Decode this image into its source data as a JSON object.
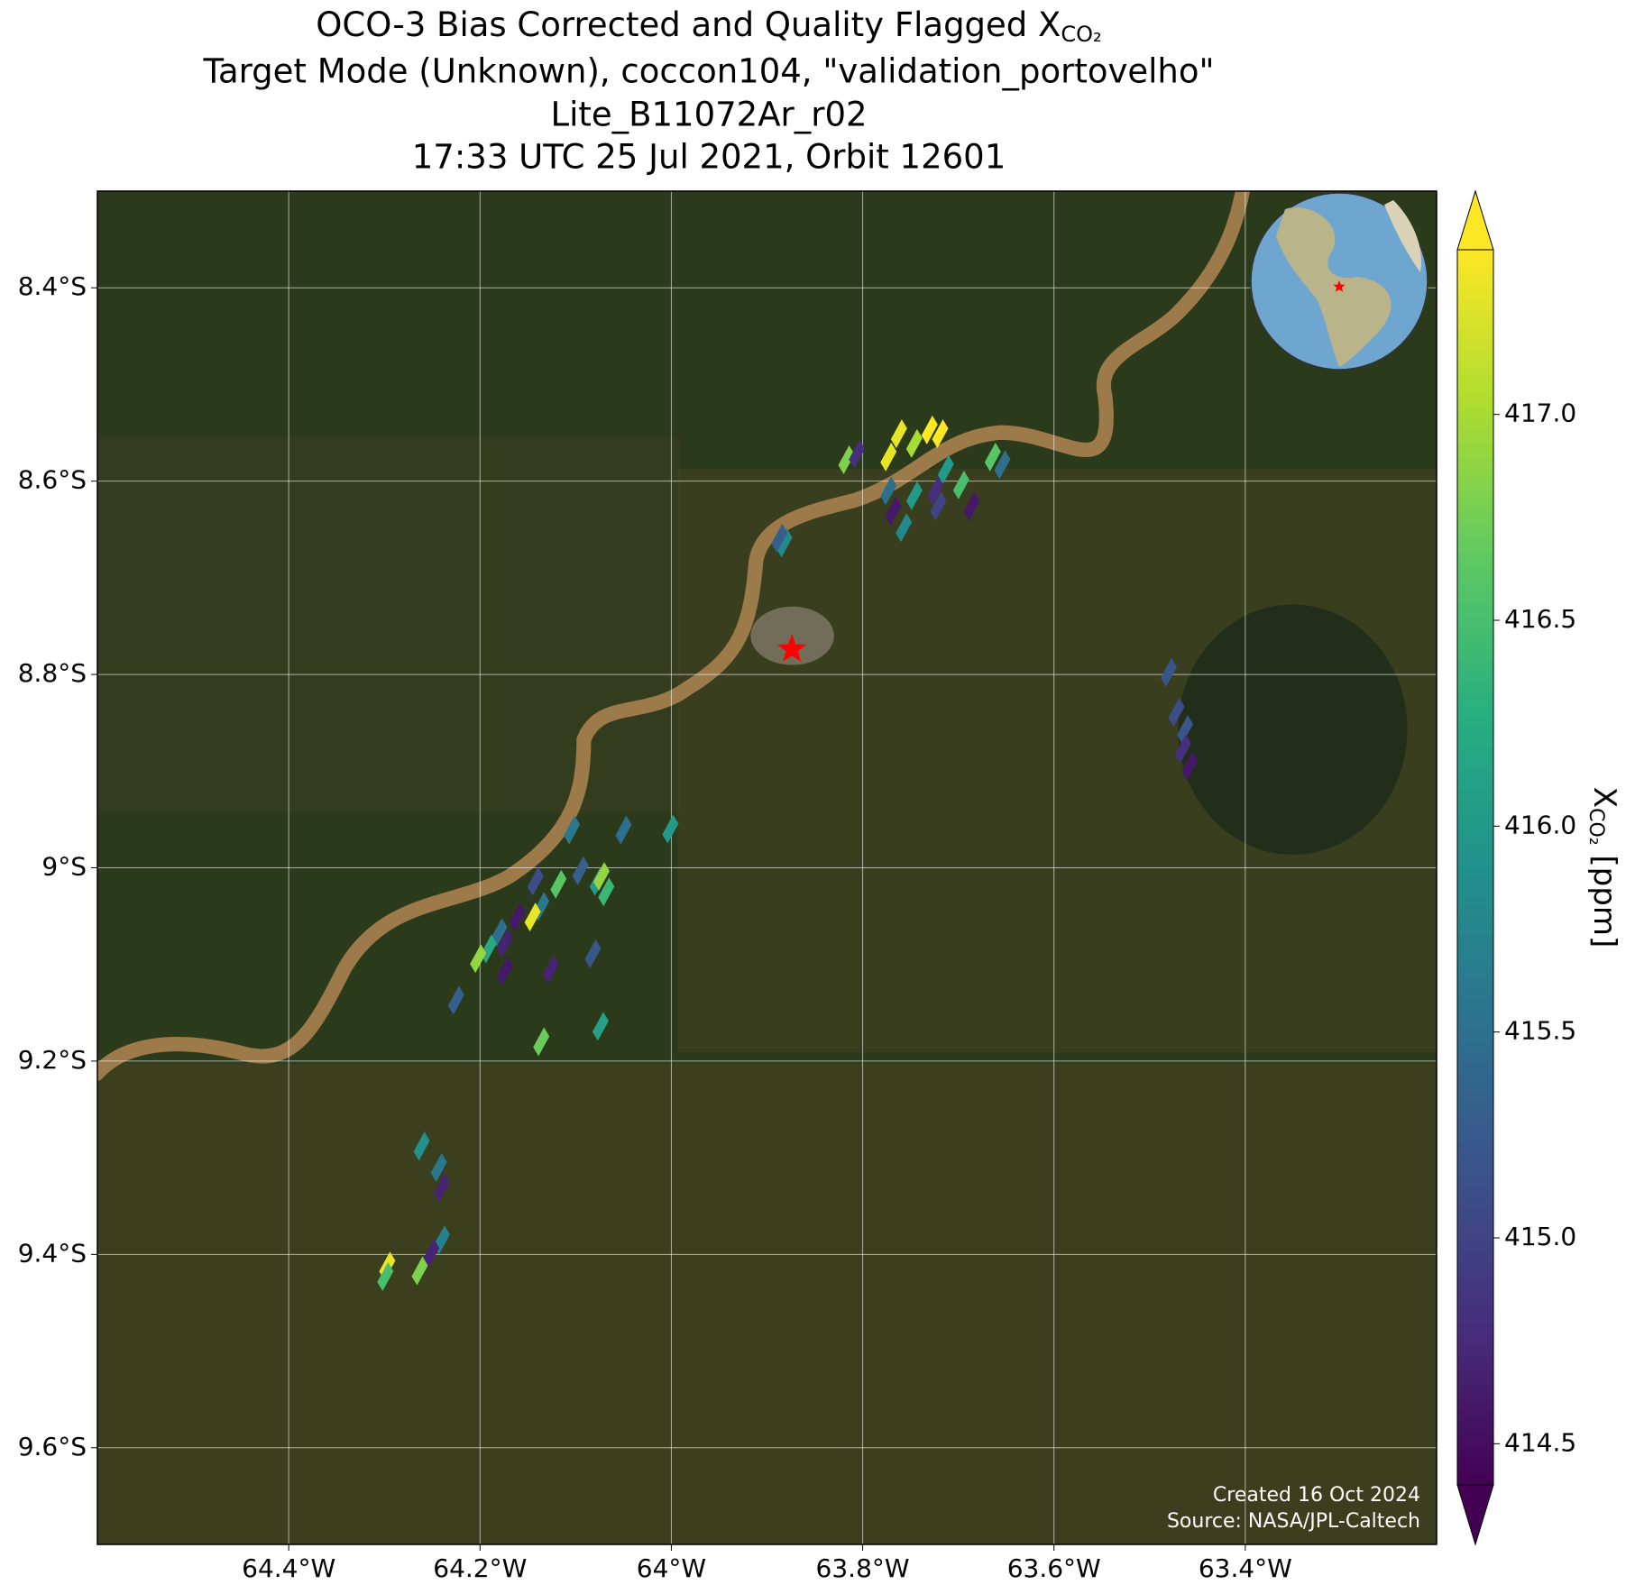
{
  "chart_data": {
    "type": "footprint-map",
    "title": {
      "line1": "OCO-3 Bias Corrected and Quality Flagged X",
      "line1_sub": "CO₂",
      "line2": "Target Mode (Unknown), coccon104, \"validation_portovelho\"",
      "line3": "Lite_B11072Ar_r02",
      "line4": "17:33 UTC 25 Jul 2021, Orbit 12601"
    },
    "xlim": [
      -64.6,
      -63.2
    ],
    "ylim": [
      -9.7,
      -8.3
    ],
    "xticks": [
      {
        "value": -64.4,
        "label": "64.4°W"
      },
      {
        "value": -64.2,
        "label": "64.2°W"
      },
      {
        "value": -64.0,
        "label": "64°W"
      },
      {
        "value": -63.8,
        "label": "63.8°W"
      },
      {
        "value": -63.6,
        "label": "63.6°W"
      },
      {
        "value": -63.4,
        "label": "63.4°W"
      }
    ],
    "yticks": [
      {
        "value": -8.4,
        "label": "8.4°S"
      },
      {
        "value": -8.6,
        "label": "8.6°S"
      },
      {
        "value": -8.8,
        "label": "8.8°S"
      },
      {
        "value": -9.0,
        "label": "9°S"
      },
      {
        "value": -9.2,
        "label": "9.2°S"
      },
      {
        "value": -9.4,
        "label": "9.4°S"
      },
      {
        "value": -9.6,
        "label": "9.6°S"
      }
    ],
    "grid": true,
    "colormap": "viridis",
    "clim": [
      414.4,
      417.4
    ],
    "cticks": [
      414.5,
      {
        "value": 415.0,
        "label": "415.0"
      },
      415.5,
      {
        "value": 416.0,
        "label": "416.0"
      },
      416.5,
      {
        "value": 417.0,
        "label": "417.0"
      }
    ],
    "colorbar_label": {
      "main": "X",
      "sub": "CO₂",
      "unit": "[ppm]"
    },
    "target": {
      "x": -63.874,
      "y": -8.774,
      "color": "#ff0000"
    },
    "x": [
      -63.817,
      -63.806,
      -63.773,
      -63.762,
      -63.746,
      -63.73,
      -63.719,
      -63.773,
      -63.768,
      -63.757,
      -63.746,
      -63.724,
      -63.721,
      -63.713,
      -63.697,
      -63.686,
      -63.664,
      -63.654,
      -63.882,
      -63.887,
      -63.48,
      -63.472,
      -63.463,
      -63.465,
      -63.458,
      -64.104,
      -64.05,
      -64.001,
      -64.142,
      -64.136,
      -64.118,
      -64.095,
      -64.077,
      -64.068,
      -64.073,
      -64.145,
      -64.161,
      -64.18,
      -64.174,
      -64.191,
      -64.202,
      -64.174,
      -64.126,
      -64.082,
      -64.225,
      -64.074,
      -64.136,
      -64.261,
      -64.243,
      -64.24,
      -64.24,
      -64.251,
      -64.297,
      -64.299,
      -64.263
    ],
    "y": [
      -8.578,
      -8.572,
      -8.575,
      -8.551,
      -8.561,
      -8.547,
      -8.551,
      -8.61,
      -8.631,
      -8.648,
      -8.615,
      -8.61,
      -8.626,
      -8.588,
      -8.604,
      -8.626,
      -8.575,
      -8.583,
      -8.664,
      -8.659,
      -8.798,
      -8.839,
      -8.857,
      -8.877,
      -8.895,
      -8.961,
      -8.961,
      -8.96,
      -9.014,
      -9.04,
      -9.017,
      -9.003,
      -9.014,
      -9.025,
      -9.009,
      -9.051,
      -9.051,
      -9.067,
      -9.078,
      -9.084,
      -9.094,
      -9.107,
      -9.105,
      -9.089,
      -9.137,
      -9.164,
      -9.18,
      -9.288,
      -9.31,
      -9.331,
      -9.385,
      -9.399,
      -9.412,
      -9.423,
      -9.417
    ],
    "values": [
      416.8,
      414.8,
      417.3,
      417.3,
      417.0,
      417.4,
      417.4,
      415.5,
      414.6,
      415.8,
      416.0,
      414.8,
      415.0,
      416.0,
      416.5,
      414.6,
      416.6,
      415.5,
      415.8,
      415.3,
      415.2,
      415.1,
      415.2,
      414.8,
      414.6,
      415.6,
      415.5,
      416.0,
      415.1,
      415.6,
      416.6,
      415.3,
      416.0,
      416.4,
      416.9,
      417.3,
      414.6,
      415.5,
      414.7,
      416.2,
      416.9,
      414.6,
      414.7,
      415.2,
      415.3,
      416.1,
      416.7,
      415.9,
      415.6,
      414.7,
      415.7,
      414.7,
      417.3,
      416.5,
      416.8
    ],
    "annotations": [
      "Created 16 Oct 2024",
      "Source: NASA/JPL-Caltech"
    ]
  }
}
